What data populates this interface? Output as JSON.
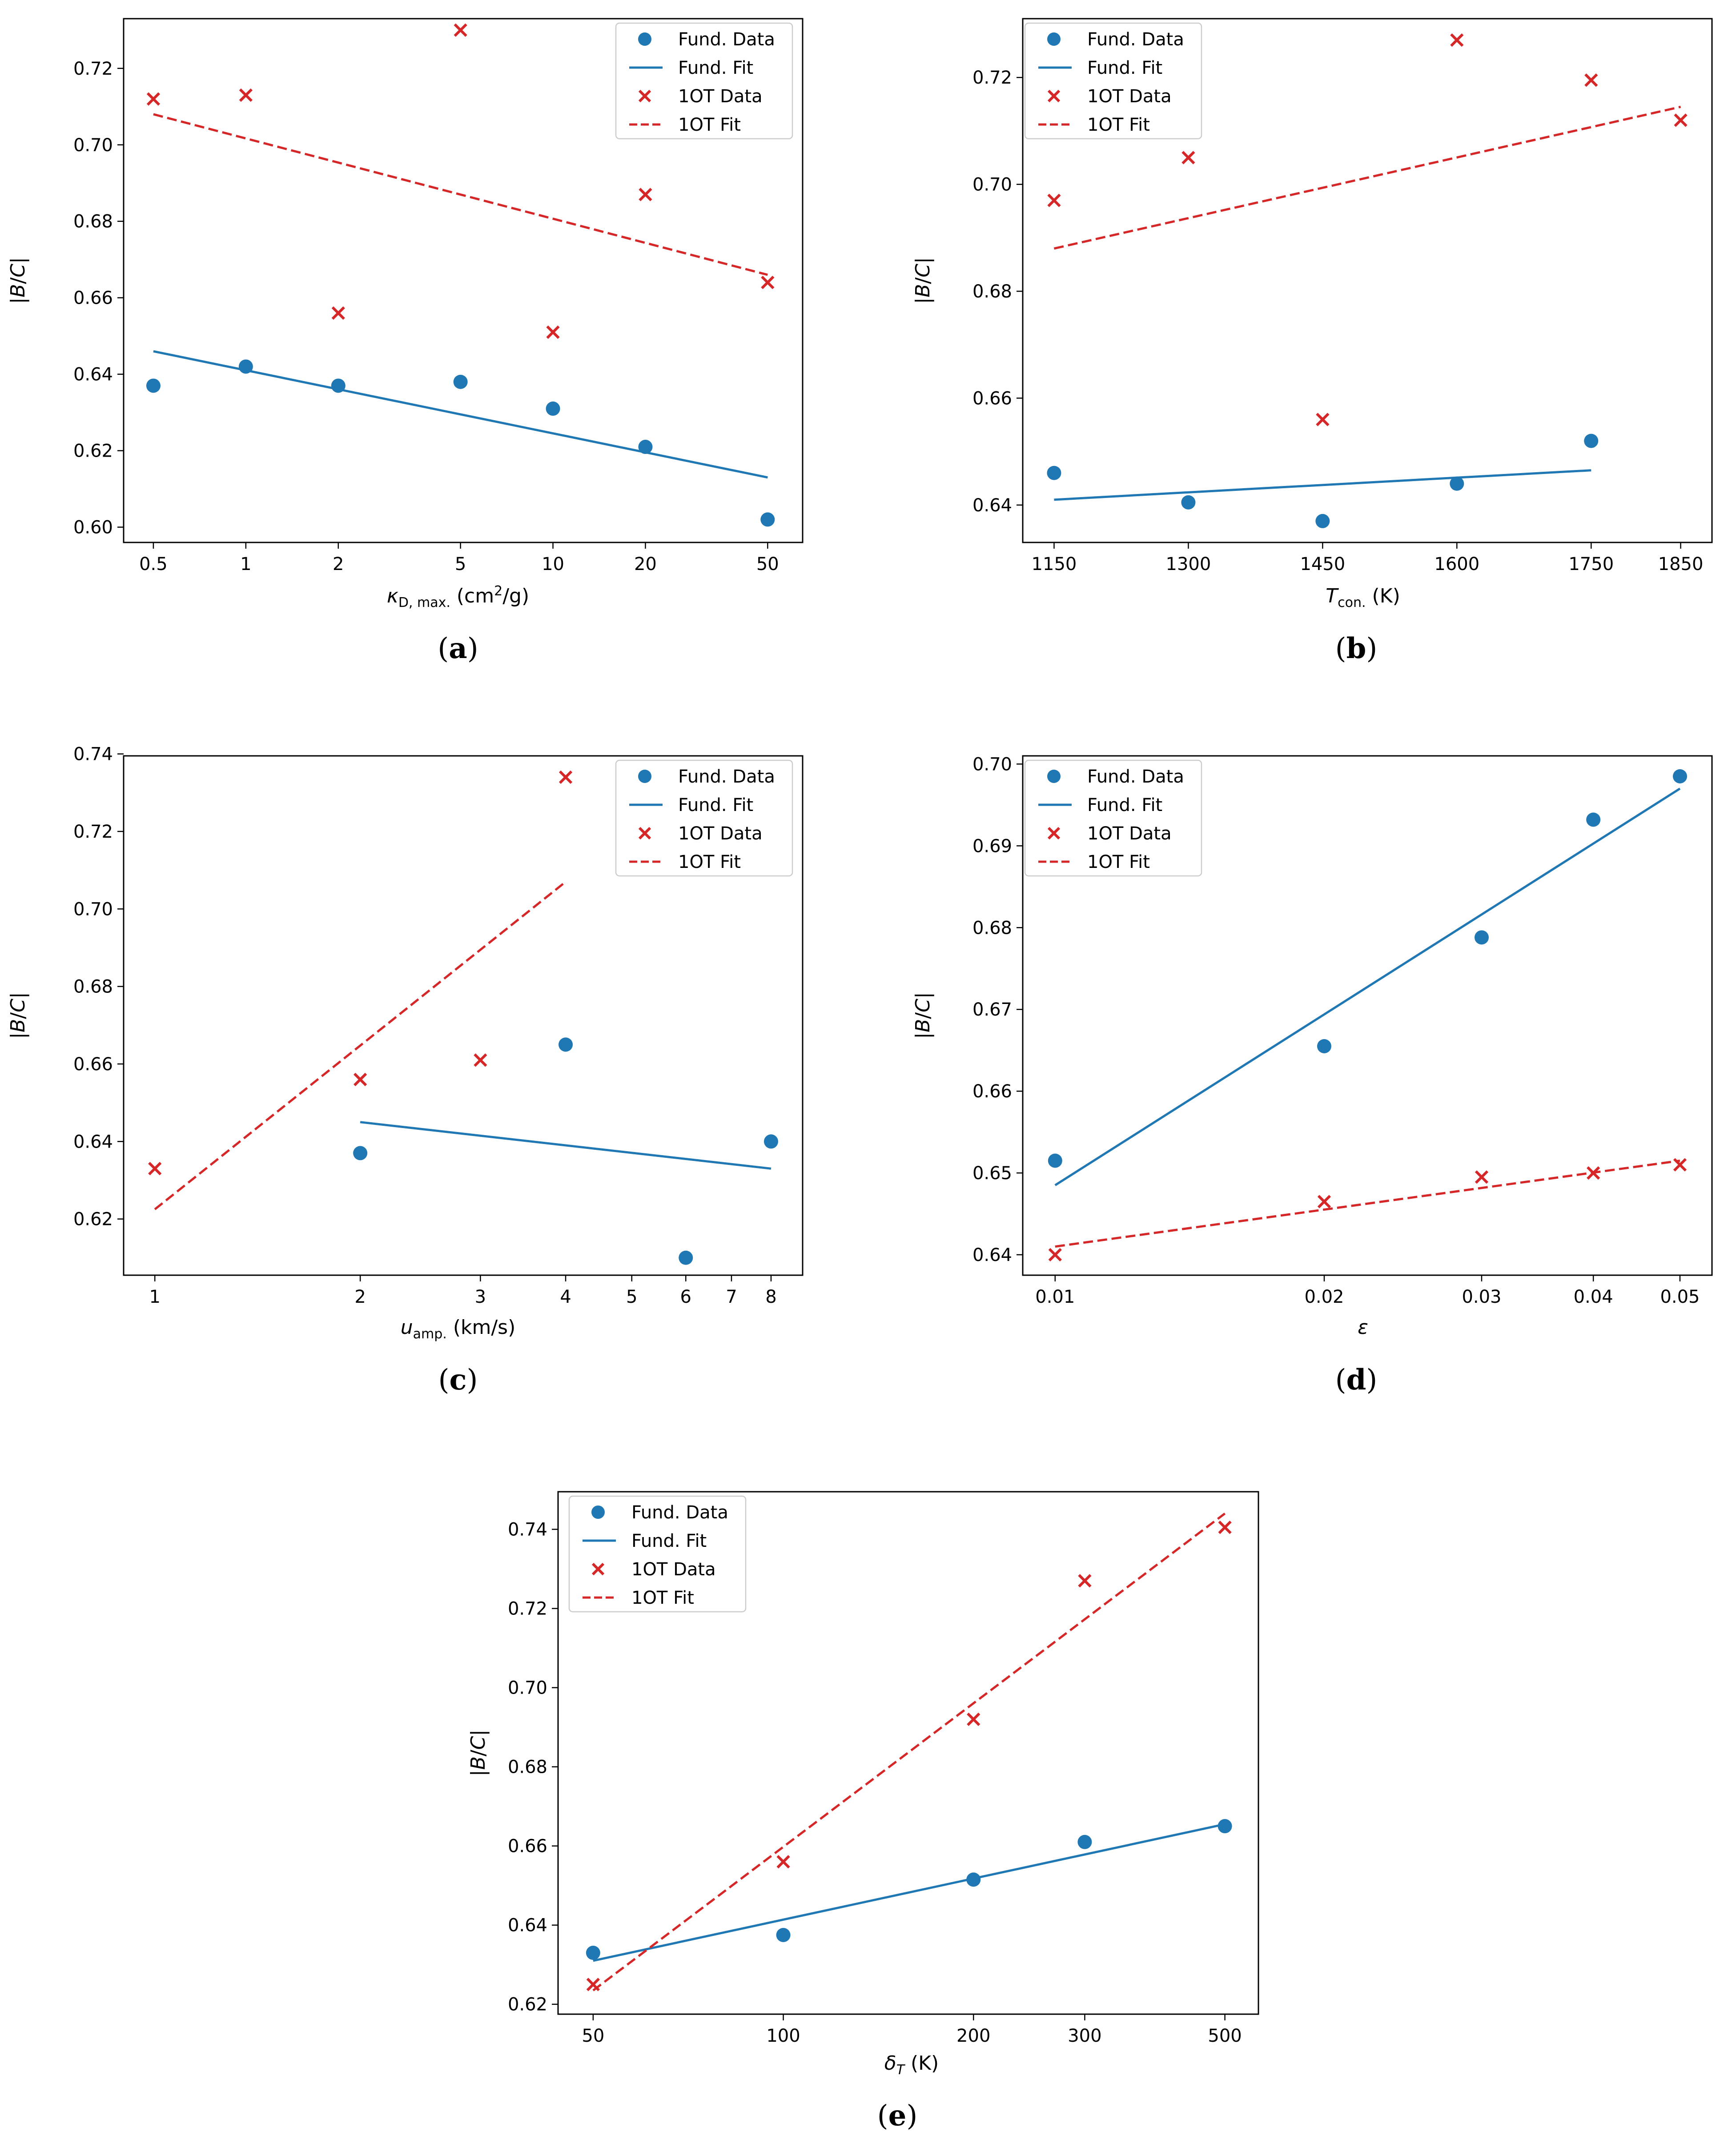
{
  "colors": {
    "fund": "#1f77b4",
    "oneot": "#d62728"
  },
  "legend": [
    "Fund. Data",
    "Fund. Fit",
    "1OT Data",
    "1OT Fit"
  ],
  "chart_data": [
    {
      "type": "scatter",
      "caption": "(a)",
      "xscale": "log",
      "xlabel": "κD, max. (cm2/g)",
      "ylabel": "|B/C|",
      "xticks": [
        0.5,
        1,
        2,
        5,
        10,
        20,
        50
      ],
      "xtick_labels": [
        "0.5",
        "1",
        "2",
        "5",
        "10",
        "20",
        "50"
      ],
      "yticks": [
        0.6,
        0.62,
        0.64,
        0.66,
        0.68,
        0.7,
        0.72
      ],
      "ytick_labels": [
        "0.60",
        "0.62",
        "0.64",
        "0.66",
        "0.68",
        "0.70",
        "0.72"
      ],
      "xlim": [
        0.4,
        65
      ],
      "ylim": [
        0.596,
        0.733
      ],
      "legend_position": "upper right",
      "series": [
        {
          "name": "Fund. Data",
          "kind": "points",
          "x": [
            0.5,
            1,
            2,
            5,
            10,
            20,
            50
          ],
          "y": [
            0.637,
            0.642,
            0.637,
            0.638,
            0.631,
            0.621,
            0.602
          ]
        },
        {
          "name": "Fund. Fit",
          "kind": "line",
          "x": [
            0.5,
            50
          ],
          "y": [
            0.646,
            0.613
          ]
        },
        {
          "name": "1OT Data",
          "kind": "crosses",
          "x": [
            0.5,
            1,
            2,
            5,
            10,
            20,
            50
          ],
          "y": [
            0.712,
            0.713,
            0.656,
            0.73,
            0.651,
            0.687,
            0.664
          ]
        },
        {
          "name": "1OT Fit",
          "kind": "dashed",
          "x": [
            0.5,
            50
          ],
          "y": [
            0.708,
            0.666
          ]
        }
      ]
    },
    {
      "type": "scatter",
      "caption": "(b)",
      "xscale": "linear",
      "xlabel": "Tcon. (K)",
      "ylabel": "|B/C|",
      "xticks": [
        1150,
        1300,
        1450,
        1600,
        1750,
        1850
      ],
      "xtick_labels": [
        "1150",
        "1300",
        "1450",
        "1600",
        "1750",
        "1850"
      ],
      "yticks": [
        0.64,
        0.66,
        0.68,
        0.7,
        0.72
      ],
      "ytick_labels": [
        "0.64",
        "0.66",
        "0.68",
        "0.70",
        "0.72"
      ],
      "xlim": [
        1115,
        1885
      ],
      "ylim": [
        0.633,
        0.731
      ],
      "legend_position": "upper left",
      "series": [
        {
          "name": "Fund. Data",
          "kind": "points",
          "x": [
            1150,
            1300,
            1450,
            1600,
            1750
          ],
          "y": [
            0.646,
            0.6405,
            0.637,
            0.644,
            0.652
          ]
        },
        {
          "name": "Fund. Fit",
          "kind": "line",
          "x": [
            1150,
            1750
          ],
          "y": [
            0.641,
            0.6465
          ]
        },
        {
          "name": "1OT Data",
          "kind": "crosses",
          "x": [
            1150,
            1300,
            1450,
            1600,
            1750,
            1850
          ],
          "y": [
            0.697,
            0.705,
            0.656,
            0.727,
            0.7195,
            0.712
          ]
        },
        {
          "name": "1OT Fit",
          "kind": "dashed",
          "x": [
            1150,
            1850
          ],
          "y": [
            0.688,
            0.7145
          ]
        }
      ]
    },
    {
      "type": "scatter",
      "caption": "(c)",
      "xscale": "log",
      "xlabel": "uamp. (km/s)",
      "ylabel": "|B/C|",
      "xticks": [
        1,
        2,
        3,
        4,
        5,
        6,
        7,
        8
      ],
      "xtick_labels": [
        "1",
        "2",
        "3",
        "4",
        "5",
        "6",
        "7",
        "8"
      ],
      "yticks": [
        0.62,
        0.64,
        0.66,
        0.68,
        0.7,
        0.72,
        0.74
      ],
      "ytick_labels": [
        "0.62",
        "0.64",
        "0.66",
        "0.68",
        "0.70",
        "0.72",
        "0.74"
      ],
      "xlim": [
        0.9,
        8.9
      ],
      "ylim": [
        0.6055,
        0.7395
      ],
      "legend_position": "upper right",
      "series": [
        {
          "name": "Fund. Data",
          "kind": "points",
          "x": [
            2,
            4,
            6,
            8
          ],
          "y": [
            0.637,
            0.665,
            0.61,
            0.64
          ]
        },
        {
          "name": "Fund. Fit",
          "kind": "line",
          "x": [
            2,
            8
          ],
          "y": [
            0.645,
            0.633
          ]
        },
        {
          "name": "1OT Data",
          "kind": "crosses",
          "x": [
            1,
            2,
            3,
            4
          ],
          "y": [
            0.633,
            0.656,
            0.661,
            0.734
          ]
        },
        {
          "name": "1OT Fit",
          "kind": "dashed",
          "x": [
            1,
            4
          ],
          "y": [
            0.6225,
            0.707
          ]
        }
      ]
    },
    {
      "type": "scatter",
      "caption": "(d)",
      "xscale": "log",
      "xlabel": "ε",
      "ylabel": "|B/C|",
      "xticks": [
        0.01,
        0.02,
        0.03,
        0.04,
        0.05
      ],
      "xtick_labels": [
        "0.01",
        "0.02",
        "0.03",
        "0.04",
        "0.05"
      ],
      "yticks": [
        0.64,
        0.65,
        0.66,
        0.67,
        0.68,
        0.69,
        0.7
      ],
      "ytick_labels": [
        "0.64",
        "0.65",
        "0.66",
        "0.67",
        "0.68",
        "0.69",
        "0.70"
      ],
      "xlim": [
        0.0092,
        0.0543
      ],
      "ylim": [
        0.6375,
        0.701
      ],
      "legend_position": "upper left",
      "series": [
        {
          "name": "Fund. Data",
          "kind": "points",
          "x": [
            0.01,
            0.02,
            0.03,
            0.04,
            0.05
          ],
          "y": [
            0.6515,
            0.6655,
            0.6788,
            0.6932,
            0.6985
          ]
        },
        {
          "name": "Fund. Fit",
          "kind": "line",
          "x": [
            0.01,
            0.05
          ],
          "y": [
            0.6485,
            0.697
          ]
        },
        {
          "name": "1OT Data",
          "kind": "crosses",
          "x": [
            0.01,
            0.02,
            0.03,
            0.04,
            0.05
          ],
          "y": [
            0.64,
            0.6465,
            0.6495,
            0.65,
            0.651
          ]
        },
        {
          "name": "1OT Fit",
          "kind": "dashed",
          "x": [
            0.01,
            0.05
          ],
          "y": [
            0.641,
            0.6515
          ]
        }
      ]
    },
    {
      "type": "scatter",
      "caption": "(e)",
      "xscale": "log",
      "xlabel": "δT (K)",
      "ylabel": "|B/C|",
      "xticks": [
        50,
        100,
        200,
        300,
        500
      ],
      "xtick_labels": [
        "50",
        "100",
        "200",
        "300",
        "500"
      ],
      "yticks": [
        0.62,
        0.64,
        0.66,
        0.68,
        0.7,
        0.72,
        0.74
      ],
      "ytick_labels": [
        "0.62",
        "0.64",
        "0.66",
        "0.68",
        "0.70",
        "0.72",
        "0.74"
      ],
      "xlim": [
        44,
        565
      ],
      "ylim": [
        0.6175,
        0.7495
      ],
      "legend_position": "upper left",
      "series": [
        {
          "name": "Fund. Data",
          "kind": "points",
          "x": [
            50,
            100,
            200,
            300,
            500
          ],
          "y": [
            0.633,
            0.6375,
            0.6515,
            0.661,
            0.665
          ]
        },
        {
          "name": "Fund. Fit",
          "kind": "line",
          "x": [
            50,
            500
          ],
          "y": [
            0.631,
            0.6655
          ]
        },
        {
          "name": "1OT Data",
          "kind": "crosses",
          "x": [
            50,
            100,
            200,
            300,
            500
          ],
          "y": [
            0.625,
            0.656,
            0.692,
            0.727,
            0.7405
          ]
        },
        {
          "name": "1OT Fit",
          "kind": "dashed",
          "x": [
            50,
            500
          ],
          "y": [
            0.6235,
            0.744
          ]
        }
      ]
    }
  ]
}
